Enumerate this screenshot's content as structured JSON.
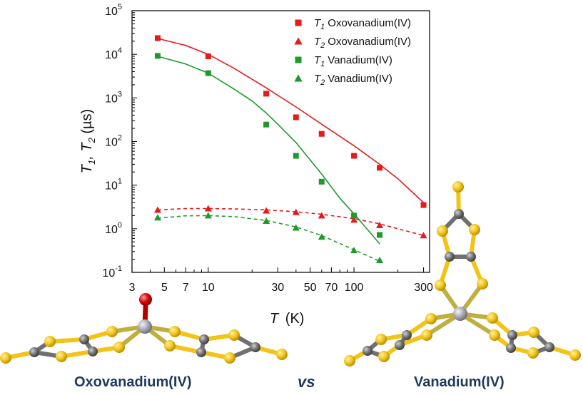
{
  "chart_data": {
    "type": "scatter",
    "xlabel": "T",
    "xlabel_unit": "(K)",
    "ylabel_prefix": "T",
    "ylabel_sub1": "1",
    "ylabel_mid": ", T",
    "ylabel_sub2": "2",
    "ylabel_unit": " (µs)",
    "xscale": "log",
    "yscale": "log",
    "xlim": [
      3,
      330
    ],
    "ylim": [
      0.1,
      100000
    ],
    "x_ticks": [
      3,
      5,
      7,
      10,
      30,
      50,
      70,
      100,
      300
    ],
    "x_tick_labels": [
      "3",
      "5",
      "7",
      "10",
      "30",
      "50",
      "70",
      "100",
      "300"
    ],
    "y_ticks": [
      0.1,
      1,
      10,
      100,
      1000,
      10000,
      100000
    ],
    "y_tick_labels": [
      {
        "base": "10",
        "exp": "-1"
      },
      {
        "base": "10",
        "exp": "0"
      },
      {
        "base": "10",
        "exp": "1"
      },
      {
        "base": "10",
        "exp": "2"
      },
      {
        "base": "10",
        "exp": "3"
      },
      {
        "base": "10",
        "exp": "4"
      },
      {
        "base": "10",
        "exp": "5"
      }
    ],
    "legend_position": "top-right",
    "series": [
      {
        "name": "Oxovanadium(IV)",
        "sym": "T",
        "sub": "1",
        "marker": "square",
        "color": "#e8191a",
        "fit": "solid",
        "x": [
          4.5,
          10,
          25,
          40,
          60,
          100,
          150,
          300
        ],
        "y": [
          23500,
          9000,
          1250,
          360,
          150,
          47,
          25,
          3.5
        ],
        "fit_x": [
          4.5,
          7,
          10,
          15,
          25,
          40,
          60,
          100,
          150,
          200,
          300
        ],
        "fit_y": [
          23000,
          16000,
          10000,
          4800,
          1700,
          620,
          250,
          80,
          30,
          14,
          4
        ]
      },
      {
        "name": "Oxovanadium(IV)",
        "sym": "T",
        "sub": "2",
        "marker": "triangle",
        "color": "#e8191a",
        "fit": "dashed",
        "x": [
          4.5,
          10,
          25,
          40,
          60,
          100,
          150,
          300
        ],
        "y": [
          2.7,
          2.9,
          2.6,
          2.4,
          2.0,
          1.6,
          1.2,
          0.7
        ],
        "fit_x": [
          4.5,
          7,
          10,
          15,
          25,
          40,
          60,
          100,
          150,
          200,
          300
        ],
        "fit_y": [
          2.7,
          2.9,
          2.9,
          2.85,
          2.7,
          2.45,
          2.15,
          1.7,
          1.3,
          1.0,
          0.7
        ]
      },
      {
        "name": "Vanadium(IV)",
        "sym": "T",
        "sub": "1",
        "marker": "square",
        "color": "#1e9a2a",
        "fit": "solid",
        "x": [
          4.5,
          10,
          25,
          40,
          60,
          100,
          150
        ],
        "y": [
          9200,
          3700,
          245,
          47,
          12,
          2.0,
          0.72
        ],
        "fit_x": [
          4.5,
          7,
          10,
          15,
          20,
          25,
          30,
          40,
          50,
          60,
          80,
          100,
          150
        ],
        "fit_y": [
          9000,
          6000,
          3700,
          1600,
          850,
          450,
          250,
          95,
          38,
          18,
          5,
          2.2,
          0.45
        ]
      },
      {
        "name": "Vanadium(IV)",
        "sym": "T",
        "sub": "2",
        "marker": "triangle",
        "color": "#1e9a2a",
        "fit": "dashed",
        "x": [
          4.5,
          10,
          25,
          40,
          60,
          100,
          150
        ],
        "y": [
          1.8,
          2.0,
          1.5,
          1.05,
          0.65,
          0.32,
          0.19
        ],
        "fit_x": [
          4.5,
          7,
          10,
          15,
          25,
          40,
          60,
          100,
          150
        ],
        "fit_y": [
          1.75,
          1.98,
          2.0,
          1.9,
          1.55,
          1.1,
          0.7,
          0.33,
          0.18
        ]
      }
    ]
  },
  "captions": {
    "left": "Oxovanadium(IV)",
    "vs": "vs",
    "right": "Vanadium(IV)"
  },
  "colors": {
    "red": "#e8191a",
    "green": "#1e9a2a",
    "sulfur": "#f2c318",
    "carbon": "#707070",
    "vanadium": "#a8a8b4",
    "oxygen": "#d40000",
    "caption": "#1d3a5c"
  }
}
